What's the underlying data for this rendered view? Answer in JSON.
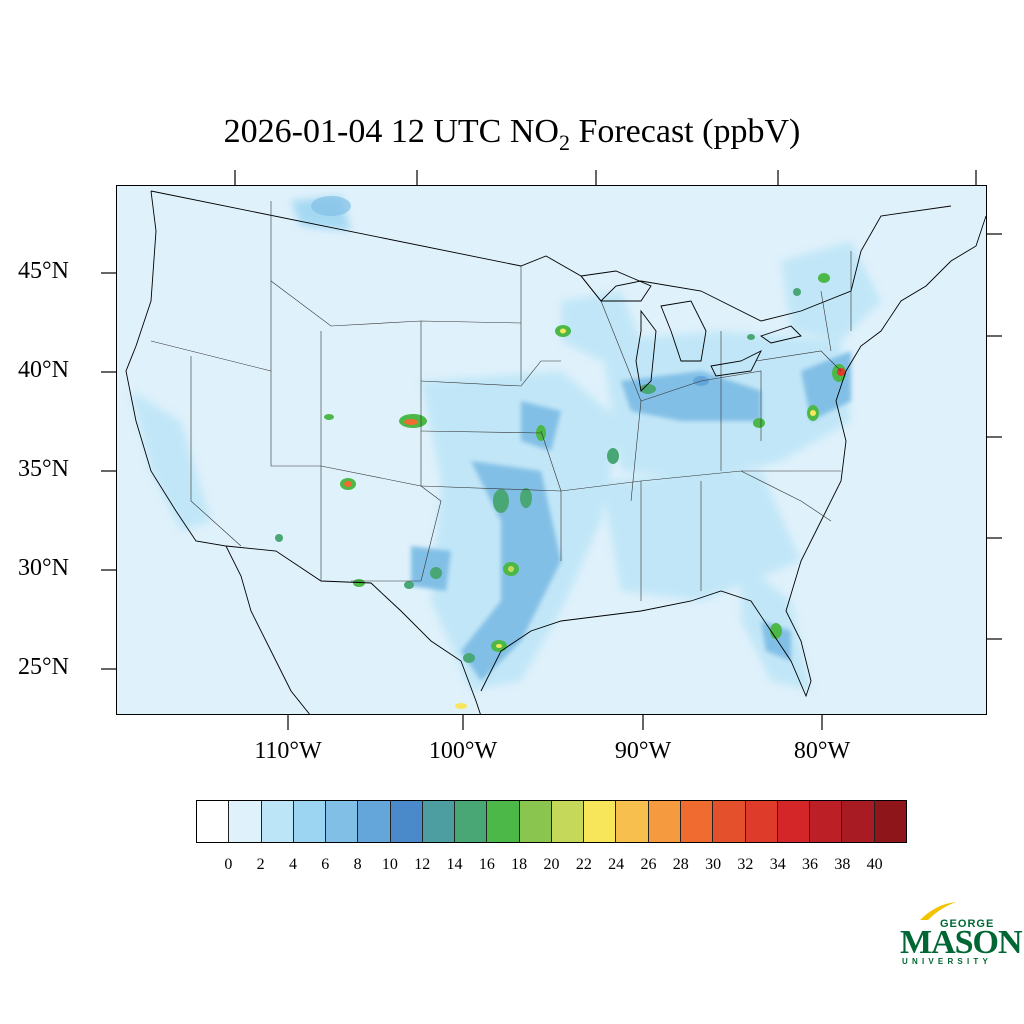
{
  "title": {
    "main": "2026-01-04 12 UTC NO",
    "subscript": "2",
    "suffix": " Forecast (ppbV)"
  },
  "lat_labels": [
    "45°N",
    "40°N",
    "35°N",
    "30°N",
    "25°N"
  ],
  "lon_labels": [
    "110°W",
    "100°W",
    "90°W",
    "80°W"
  ],
  "colorbar": {
    "colors": [
      "#ffffff",
      "#dff1fb",
      "#bce5f7",
      "#9cd5f2",
      "#82bfe6",
      "#65a6da",
      "#4a8acb",
      "#4c9ea0",
      "#48a774",
      "#4cb847",
      "#89c54f",
      "#c6d85a",
      "#f8e65a",
      "#f7bf4d",
      "#f59a3f",
      "#f06b2f",
      "#e5502c",
      "#de3b2b",
      "#d42529",
      "#bd1f26",
      "#a81b22",
      "#8e1519"
    ],
    "labels": [
      "0",
      "2",
      "4",
      "6",
      "8",
      "10",
      "12",
      "14",
      "16",
      "18",
      "20",
      "22",
      "24",
      "26",
      "28",
      "30",
      "32",
      "34",
      "36",
      "38",
      "40"
    ]
  },
  "logo": {
    "george": "GEORGE",
    "mason": "MASON",
    "university": "UNIVERSITY"
  }
}
